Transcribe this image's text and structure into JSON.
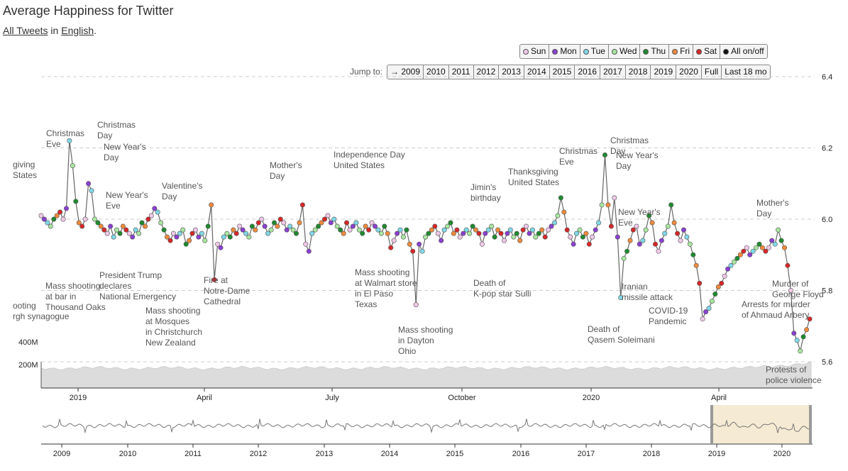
{
  "title": "Average Happiness for Twitter",
  "subline": {
    "link1": "All Tweets",
    "mid": " in ",
    "link2": "English",
    "end": "."
  },
  "day_buttons": [
    {
      "label": "Sun",
      "color": "#f0c8e8"
    },
    {
      "label": "Mon",
      "color": "#8a3fd1"
    },
    {
      "label": "Tue",
      "color": "#7fd8e8"
    },
    {
      "label": "Wed",
      "color": "#a8e6a0"
    },
    {
      "label": "Thu",
      "color": "#1e8a2e"
    },
    {
      "label": "Fri",
      "color": "#f08a3c"
    },
    {
      "label": "Sat",
      "color": "#d62728"
    },
    {
      "label": "All on/off",
      "color": "#111111"
    }
  ],
  "jump_label": "Jump to:",
  "jump_buttons": [
    "→ 2009",
    "2010",
    "2011",
    "2012",
    "2013",
    "2014",
    "2015",
    "2016",
    "2017",
    "2018",
    "2019",
    "2020",
    "Full",
    "Last 18 mo"
  ],
  "chart_data": {
    "type": "scatter",
    "title": "Average Happiness for Twitter",
    "y_ticks": [
      "6.4",
      "6.2",
      "6.0",
      "5.8",
      "5.6"
    ],
    "ylim": [
      5.55,
      6.45
    ],
    "volume_ticks": [
      "400M",
      "200M"
    ],
    "x_ticks": [
      "2019",
      "April",
      "July",
      "October",
      "2020",
      "April"
    ],
    "overview_ticks": [
      "2009",
      "2010",
      "2011",
      "2012",
      "2013",
      "2014",
      "2015",
      "2016",
      "2017",
      "2018",
      "2019",
      "2020"
    ],
    "series": [
      {
        "name": "Sun",
        "color": "#f0c8e8"
      },
      {
        "name": "Mon",
        "color": "#8a3fd1"
      },
      {
        "name": "Tue",
        "color": "#7fd8e8"
      },
      {
        "name": "Wed",
        "color": "#a8e6a0"
      },
      {
        "name": "Thu",
        "color": "#1e8a2e"
      },
      {
        "name": "Fri",
        "color": "#f08a3c"
      },
      {
        "name": "Sat",
        "color": "#d62728"
      }
    ],
    "values": [
      6.01,
      6.0,
      5.99,
      5.98,
      6.0,
      6.01,
      6.02,
      6.0,
      6.03,
      6.22,
      6.15,
      6.05,
      5.99,
      5.98,
      6.0,
      6.1,
      6.08,
      6.0,
      5.99,
      5.98,
      5.97,
      5.96,
      5.98,
      5.95,
      5.97,
      5.96,
      5.98,
      5.97,
      5.96,
      5.95,
      5.97,
      5.96,
      5.99,
      5.98,
      6.0,
      6.01,
      6.03,
      6.02,
      5.99,
      5.97,
      5.95,
      5.94,
      5.96,
      5.95,
      5.96,
      5.97,
      5.93,
      5.94,
      5.96,
      5.97,
      5.95,
      5.96,
      5.94,
      5.98,
      6.04,
      5.83,
      5.93,
      5.92,
      5.95,
      5.96,
      5.95,
      5.97,
      5.96,
      5.98,
      5.97,
      5.96,
      5.95,
      5.98,
      5.97,
      5.99,
      6.0,
      5.98,
      5.96,
      5.97,
      5.99,
      5.98,
      6.0,
      5.99,
      5.97,
      5.98,
      5.97,
      5.96,
      5.99,
      6.04,
      5.93,
      5.91,
      5.96,
      5.97,
      5.98,
      5.99,
      6.0,
      6.01,
      5.99,
      6.0,
      5.98,
      5.97,
      5.96,
      5.99,
      5.97,
      5.98,
      5.99,
      5.97,
      5.96,
      5.98,
      5.97,
      5.99,
      5.98,
      5.97,
      5.96,
      5.98,
      5.96,
      5.92,
      5.94,
      5.96,
      5.97,
      5.95,
      5.97,
      5.93,
      5.91,
      5.76,
      5.93,
      5.91,
      5.95,
      5.96,
      5.97,
      5.98,
      5.96,
      5.94,
      5.97,
      5.98,
      5.99,
      5.96,
      5.97,
      5.95,
      5.96,
      5.97,
      5.96,
      5.98,
      5.97,
      5.96,
      5.93,
      5.96,
      5.97,
      5.98,
      5.95,
      5.97,
      5.96,
      5.94,
      5.96,
      5.97,
      5.95,
      5.96,
      5.94,
      5.97,
      5.98,
      5.96,
      5.97,
      5.95,
      5.96,
      5.97,
      5.95,
      5.97,
      5.98,
      5.99,
      6.01,
      6.06,
      6.02,
      5.97,
      5.95,
      5.93,
      5.96,
      5.97,
      5.95,
      5.96,
      5.93,
      5.95,
      5.97,
      5.99,
      6.04,
      6.18,
      6.04,
      5.98,
      6.06,
      5.95,
      5.78,
      5.89,
      5.91,
      5.94,
      5.97,
      5.98,
      5.93,
      5.94,
      5.97,
      6.01,
      5.99,
      5.93,
      5.91,
      5.94,
      5.96,
      5.98,
      6.04,
      5.99,
      5.96,
      5.94,
      5.97,
      5.95,
      5.93,
      5.9,
      5.87,
      5.82,
      5.72,
      5.74,
      5.75,
      5.77,
      5.79,
      5.81,
      5.82,
      5.84,
      5.86,
      5.87,
      5.88,
      5.89,
      5.9,
      5.91,
      5.92,
      5.9,
      5.91,
      5.92,
      5.93,
      5.92,
      5.91,
      5.92,
      5.94,
      5.93,
      5.97,
      5.94,
      5.92,
      5.87,
      5.8,
      5.68,
      5.66,
      5.63,
      5.67,
      5.69,
      5.72
    ]
  },
  "annotations": [
    {
      "text": "giving|States"
    },
    {
      "text": "Christmas|Eve"
    },
    {
      "text": "Christmas|Day"
    },
    {
      "text": "New Year's|Day"
    },
    {
      "text": "New Year's|Eve"
    },
    {
      "text": "Valentine's|Day"
    },
    {
      "text": "Mother's|Day"
    },
    {
      "text": "Independence Day|United States"
    },
    {
      "text": "Jimin's|birthday"
    },
    {
      "text": "Thanksgiving|United States"
    },
    {
      "text": "Christmas|Eve"
    },
    {
      "text": "Christmas|Day"
    },
    {
      "text": "New Year's|Day"
    },
    {
      "text": "New Year's|Eve"
    },
    {
      "text": "Mother's|Day"
    },
    {
      "text": "Mass shooting|at bar in|Thousand Oaks"
    },
    {
      "text": "ooting|rgh synagogue"
    },
    {
      "text": "President Trump|declares|National Emergency"
    },
    {
      "text": "Mass shooting|at Mosques|in Christchurch|New Zealand"
    },
    {
      "text": "Fire at|Notre-Dame|Cathedral"
    },
    {
      "text": "Mass shooting|at Walmart store|in El Paso|Texas"
    },
    {
      "text": "Mass shooting|in Dayton|Ohio"
    },
    {
      "text": "Death of|K-pop star Sulli"
    },
    {
      "text": "Iranian|missile attack"
    },
    {
      "text": "COVID-19|Pandemic"
    },
    {
      "text": "Death of|Qasem Soleimani"
    },
    {
      "text": "Murder of|George Floyd"
    },
    {
      "text": "Arrests for murder|of Ahmaud Arbery"
    },
    {
      "text": "Protests of|police violence"
    }
  ]
}
